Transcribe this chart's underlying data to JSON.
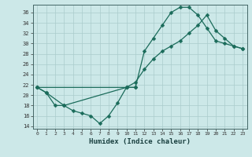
{
  "title": "",
  "xlabel": "Humidex (Indice chaleur)",
  "bg_color": "#cce8e8",
  "grid_color": "#aacccc",
  "line_color": "#1a6b5a",
  "xlim": [
    -0.5,
    23.5
  ],
  "ylim": [
    13.5,
    37.5
  ],
  "xticks": [
    0,
    1,
    2,
    3,
    4,
    5,
    6,
    7,
    8,
    9,
    10,
    11,
    12,
    13,
    14,
    15,
    16,
    17,
    18,
    19,
    20,
    21,
    22,
    23
  ],
  "yticks": [
    14,
    16,
    18,
    20,
    22,
    24,
    26,
    28,
    30,
    32,
    34,
    36
  ],
  "line1_x": [
    0,
    1,
    2,
    3,
    4,
    5,
    6,
    7,
    8,
    9,
    10,
    11
  ],
  "line1_y": [
    21.5,
    20.5,
    18.0,
    18.0,
    17.0,
    16.5,
    16.0,
    14.5,
    16.0,
    18.5,
    21.5,
    21.5
  ],
  "line2_x": [
    0,
    1,
    3,
    10,
    11,
    12,
    13,
    14,
    15,
    16,
    17,
    18,
    19,
    20,
    21,
    22,
    23
  ],
  "line2_y": [
    21.5,
    20.5,
    18.0,
    21.5,
    21.5,
    28.5,
    31.0,
    33.5,
    36.0,
    37.0,
    37.0,
    35.5,
    33.0,
    30.5,
    30.0,
    29.5,
    29.0
  ],
  "line3_x": [
    0,
    10,
    11,
    12,
    13,
    14,
    15,
    16,
    17,
    18,
    19,
    20,
    21,
    22,
    23
  ],
  "line3_y": [
    21.5,
    21.5,
    22.5,
    25.0,
    27.0,
    28.5,
    29.5,
    30.5,
    32.0,
    33.5,
    35.5,
    32.5,
    31.0,
    29.5,
    29.0
  ],
  "markersize": 2.5,
  "linewidth": 0.9
}
